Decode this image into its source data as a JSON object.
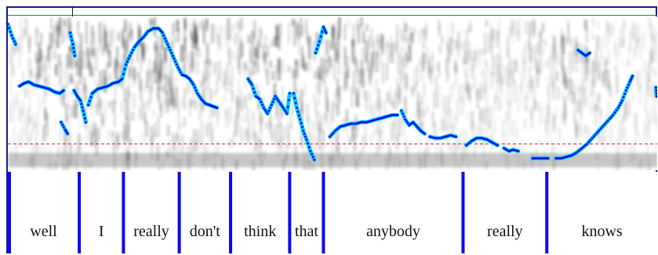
{
  "tier": {
    "words": [
      {
        "text": "well",
        "start": 0.0,
        "end": 0.11
      },
      {
        "text": "I",
        "start": 0.11,
        "end": 0.178
      },
      {
        "text": "really",
        "start": 0.178,
        "end": 0.264
      },
      {
        "text": "don't",
        "start": 0.264,
        "end": 0.343
      },
      {
        "text": "think",
        "start": 0.343,
        "end": 0.434
      },
      {
        "text": "that",
        "start": 0.434,
        "end": 0.486
      },
      {
        "text": "anybody",
        "start": 0.486,
        "end": 0.701
      },
      {
        "text": "really",
        "start": 0.701,
        "end": 0.83
      },
      {
        "text": "knows",
        "start": 0.83,
        "end": 1.0
      }
    ]
  },
  "colors": {
    "frame": "#1a1a8c",
    "boundary": "#0a0af0",
    "pitch_fill": "#00c8ff",
    "pitch_dot": "#0a0ae0",
    "reference_line": "#c82020",
    "top_line": "#1a8a6a"
  },
  "pitch_track": {
    "reference_level": 0.15,
    "contours": [
      [
        [
          0.0,
          0.98
        ],
        [
          0.006,
          0.9
        ],
        [
          0.012,
          0.84
        ]
      ],
      [
        [
          0.018,
          0.55
        ],
        [
          0.025,
          0.57
        ],
        [
          0.032,
          0.58
        ],
        [
          0.04,
          0.56
        ],
        [
          0.048,
          0.55
        ],
        [
          0.056,
          0.54
        ],
        [
          0.064,
          0.53
        ],
        [
          0.072,
          0.51
        ],
        [
          0.08,
          0.5
        ],
        [
          0.086,
          0.52
        ]
      ],
      [
        [
          0.082,
          0.3
        ],
        [
          0.088,
          0.25
        ],
        [
          0.092,
          0.22
        ]
      ],
      [
        [
          0.096,
          0.92
        ],
        [
          0.1,
          0.84
        ],
        [
          0.103,
          0.76
        ]
      ],
      [
        [
          0.102,
          0.52
        ],
        [
          0.107,
          0.48
        ],
        [
          0.112,
          0.45
        ],
        [
          0.116,
          0.38
        ],
        [
          0.12,
          0.3
        ]
      ],
      [
        [
          0.124,
          0.42
        ],
        [
          0.13,
          0.5
        ],
        [
          0.138,
          0.53
        ],
        [
          0.146,
          0.54
        ],
        [
          0.154,
          0.55
        ],
        [
          0.162,
          0.57
        ],
        [
          0.17,
          0.58
        ],
        [
          0.176,
          0.6
        ],
        [
          0.182,
          0.7
        ],
        [
          0.188,
          0.76
        ],
        [
          0.195,
          0.82
        ],
        [
          0.202,
          0.86
        ],
        [
          0.209,
          0.89
        ],
        [
          0.216,
          0.93
        ],
        [
          0.224,
          0.95
        ],
        [
          0.232,
          0.95
        ],
        [
          0.238,
          0.92
        ],
        [
          0.244,
          0.86
        ],
        [
          0.25,
          0.8
        ],
        [
          0.256,
          0.74
        ],
        [
          0.262,
          0.68
        ],
        [
          0.268,
          0.63
        ],
        [
          0.274,
          0.62
        ],
        [
          0.28,
          0.6
        ],
        [
          0.286,
          0.56
        ],
        [
          0.292,
          0.5
        ],
        [
          0.298,
          0.46
        ],
        [
          0.304,
          0.43
        ],
        [
          0.31,
          0.42
        ],
        [
          0.316,
          0.41
        ],
        [
          0.322,
          0.4
        ]
      ],
      [
        [
          0.37,
          0.6
        ],
        [
          0.376,
          0.56
        ],
        [
          0.382,
          0.48
        ],
        [
          0.388,
          0.46
        ],
        [
          0.394,
          0.4
        ],
        [
          0.4,
          0.36
        ],
        [
          0.406,
          0.42
        ],
        [
          0.412,
          0.48
        ],
        [
          0.418,
          0.44
        ],
        [
          0.424,
          0.4
        ],
        [
          0.43,
          0.36
        ],
        [
          0.434,
          0.5
        ]
      ],
      [
        [
          0.44,
          0.5
        ],
        [
          0.445,
          0.4
        ],
        [
          0.45,
          0.32
        ],
        [
          0.455,
          0.24
        ],
        [
          0.46,
          0.18
        ],
        [
          0.466,
          0.1
        ],
        [
          0.472,
          0.04
        ]
      ],
      [
        [
          0.474,
          0.78
        ],
        [
          0.48,
          0.86
        ],
        [
          0.486,
          0.96
        ],
        [
          0.49,
          0.92
        ]
      ],
      [
        [
          0.496,
          0.2
        ],
        [
          0.504,
          0.24
        ],
        [
          0.512,
          0.27
        ],
        [
          0.52,
          0.28
        ],
        [
          0.528,
          0.29
        ],
        [
          0.536,
          0.29
        ],
        [
          0.544,
          0.3
        ],
        [
          0.552,
          0.3
        ],
        [
          0.56,
          0.31
        ],
        [
          0.568,
          0.32
        ],
        [
          0.576,
          0.33
        ],
        [
          0.584,
          0.34
        ],
        [
          0.592,
          0.35
        ],
        [
          0.6,
          0.35
        ]
      ],
      [
        [
          0.606,
          0.38
        ],
        [
          0.612,
          0.32
        ],
        [
          0.618,
          0.28
        ],
        [
          0.624,
          0.3
        ],
        [
          0.63,
          0.27
        ],
        [
          0.636,
          0.24
        ],
        [
          0.642,
          0.22
        ]
      ],
      [
        [
          0.65,
          0.2
        ],
        [
          0.658,
          0.19
        ],
        [
          0.666,
          0.19
        ],
        [
          0.674,
          0.2
        ],
        [
          0.682,
          0.21
        ],
        [
          0.69,
          0.2
        ]
      ],
      [
        [
          0.706,
          0.14
        ],
        [
          0.714,
          0.17
        ],
        [
          0.722,
          0.19
        ],
        [
          0.73,
          0.19
        ],
        [
          0.738,
          0.18
        ],
        [
          0.746,
          0.16
        ],
        [
          0.754,
          0.14
        ]
      ],
      [
        [
          0.764,
          0.12
        ],
        [
          0.772,
          0.1
        ],
        [
          0.778,
          0.11
        ],
        [
          0.786,
          0.1
        ]
      ],
      [
        [
          0.808,
          0.05
        ],
        [
          0.816,
          0.05
        ],
        [
          0.824,
          0.05
        ],
        [
          0.832,
          0.05
        ]
      ],
      [
        [
          0.844,
          0.05
        ],
        [
          0.852,
          0.05
        ],
        [
          0.86,
          0.06
        ],
        [
          0.868,
          0.07
        ],
        [
          0.876,
          0.09
        ],
        [
          0.884,
          0.12
        ],
        [
          0.892,
          0.15
        ],
        [
          0.9,
          0.19
        ],
        [
          0.908,
          0.23
        ],
        [
          0.916,
          0.27
        ],
        [
          0.924,
          0.31
        ],
        [
          0.932,
          0.35
        ],
        [
          0.94,
          0.4
        ],
        [
          0.946,
          0.45
        ],
        [
          0.952,
          0.52
        ],
        [
          0.958,
          0.58
        ],
        [
          0.962,
          0.62
        ]
      ],
      [
        [
          0.878,
          0.8
        ],
        [
          0.884,
          0.78
        ],
        [
          0.89,
          0.76
        ],
        [
          0.896,
          0.78
        ]
      ],
      [
        [
          0.998,
          0.54
        ],
        [
          0.999,
          0.48
        ]
      ]
    ]
  }
}
